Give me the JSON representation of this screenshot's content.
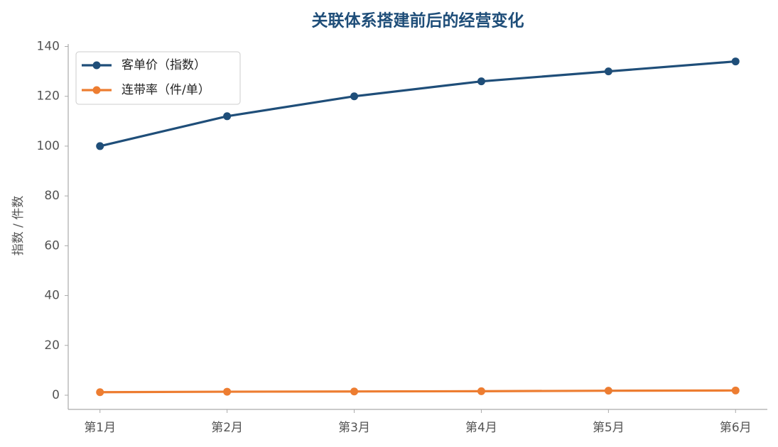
{
  "chart_data": {
    "type": "line",
    "title": "关联体系搭建前后的经营变化",
    "ylabel": "指数 / 件数",
    "categories": [
      "第1月",
      "第2月",
      "第3月",
      "第4月",
      "第5月",
      "第6月"
    ],
    "series": [
      {
        "name": "客单价（指数）",
        "color": "#1f4e79",
        "values": [
          100,
          112,
          120,
          126,
          130,
          134
        ]
      },
      {
        "name": "连带率（件/单）",
        "color": "#ed7d31",
        "values": [
          1.2,
          1.4,
          1.5,
          1.6,
          1.8,
          1.9
        ]
      }
    ],
    "ylim": [
      -5.7,
      141
    ],
    "yticks": [
      0,
      20,
      40,
      60,
      80,
      100,
      120,
      140
    ],
    "grid": false,
    "legend": "upper left"
  }
}
